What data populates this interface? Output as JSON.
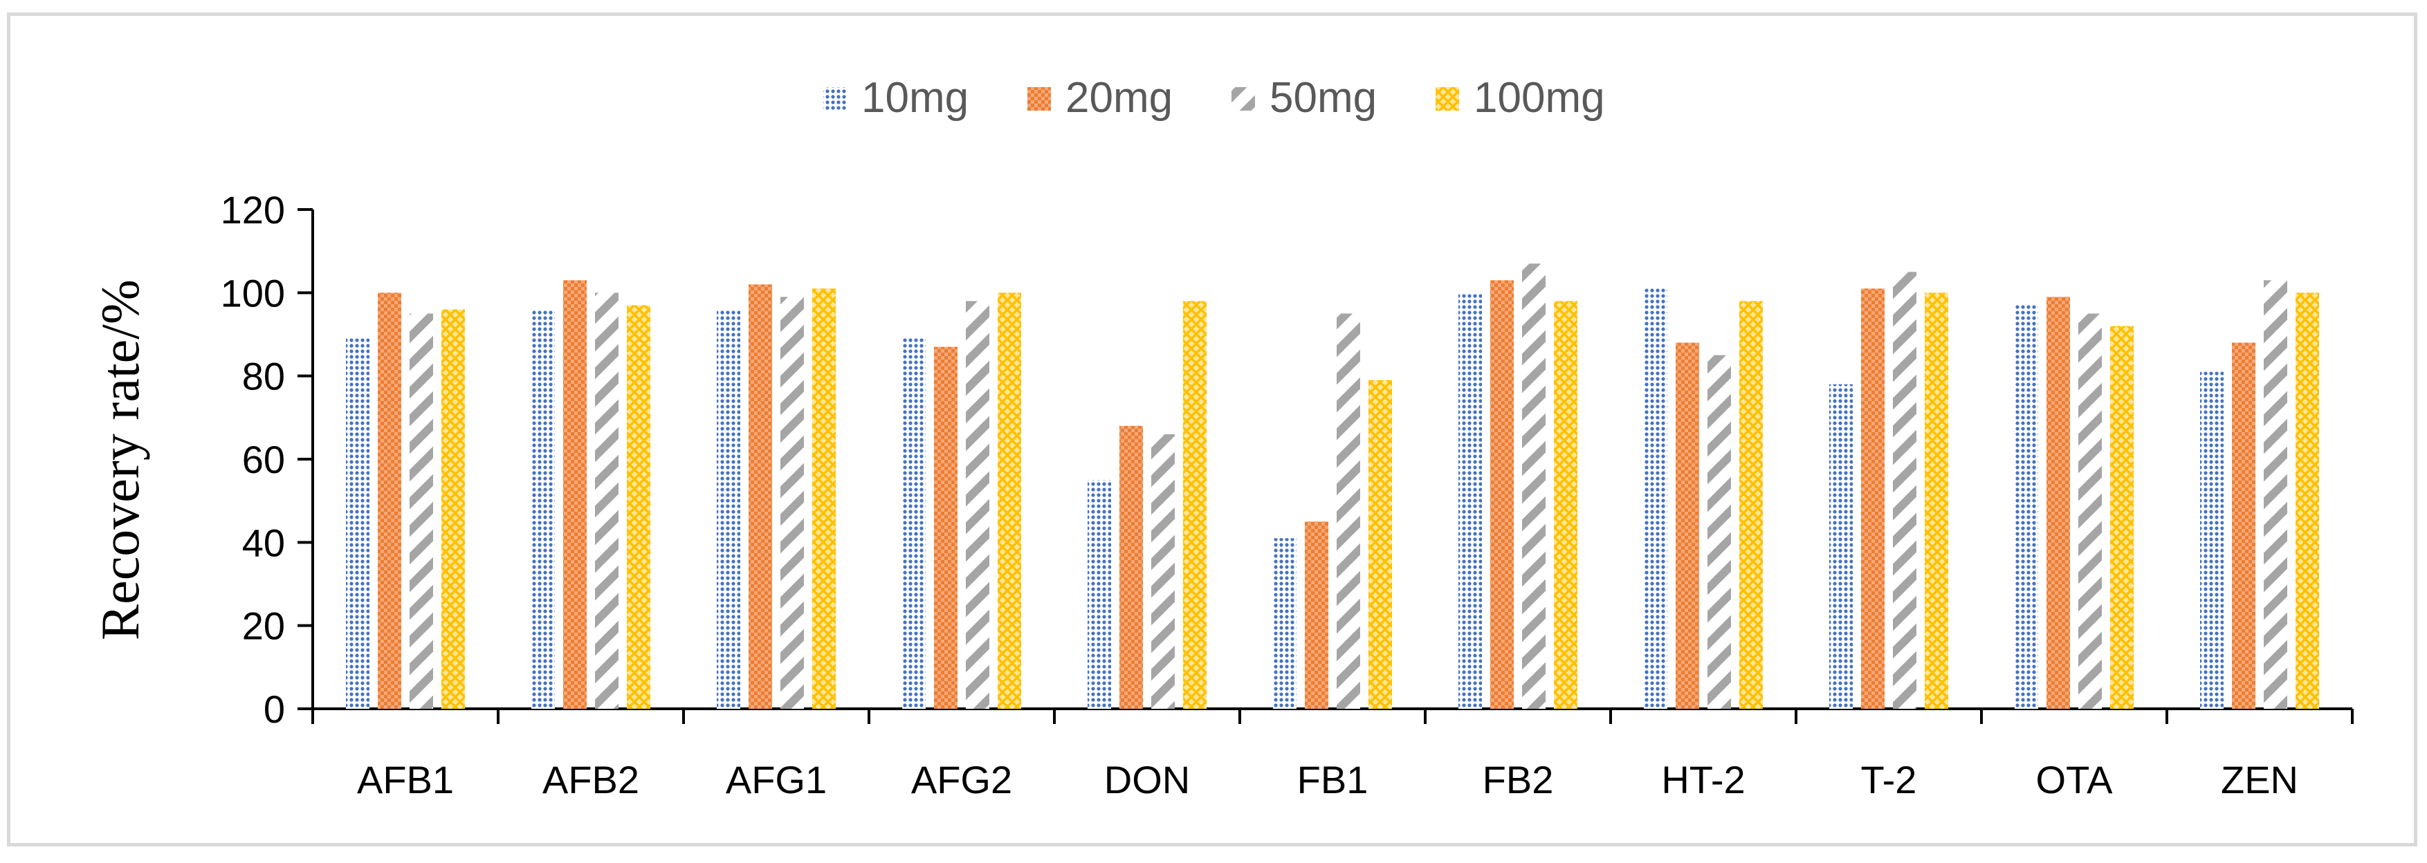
{
  "chart_data": {
    "type": "bar",
    "title": "",
    "xlabel": "",
    "ylabel": "Recovery rate/%",
    "ylim": [
      0,
      120
    ],
    "yticks": [
      0,
      20,
      40,
      60,
      80,
      100,
      120
    ],
    "categories": [
      "AFB1",
      "AFB2",
      "AFG1",
      "AFG2",
      "DON",
      "FB1",
      "FB2",
      "HT-2",
      "T-2",
      "OTA",
      "ZEN"
    ],
    "series": [
      {
        "name": "10mg",
        "color": "#4472c4",
        "pattern": "dots",
        "values": [
          89,
          96,
          96,
          89,
          55,
          41,
          100,
          101,
          78,
          97,
          81
        ]
      },
      {
        "name": "20mg",
        "color": "#ed7d31",
        "pattern": "checker",
        "values": [
          100,
          103,
          102,
          87,
          68,
          45,
          103,
          88,
          101,
          99,
          88
        ]
      },
      {
        "name": "50mg",
        "color": "#a5a5a5",
        "pattern": "diagonal",
        "values": [
          95,
          100,
          99,
          98,
          66,
          95,
          107,
          85,
          105,
          95,
          103
        ]
      },
      {
        "name": "100mg",
        "color": "#ffc000",
        "pattern": "lattice",
        "values": [
          96,
          97,
          101,
          100,
          98,
          79,
          98,
          98,
          100,
          92,
          100
        ]
      }
    ],
    "legend_position": "top",
    "grid": false
  }
}
